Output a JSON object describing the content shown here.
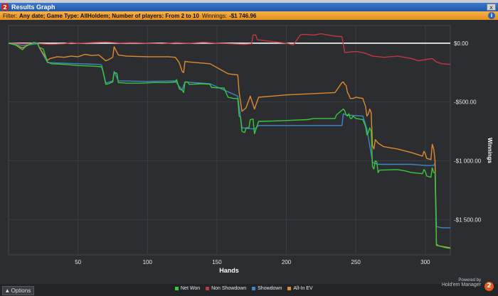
{
  "window": {
    "title": "Results Graph",
    "close_label": "x",
    "app_badge": "2"
  },
  "filter": {
    "label": "Filter:",
    "value": "Any date; Game Type: AllHoldem; Number of players: From 2 to 10",
    "winnings_label": "Winnings:",
    "winnings_value": "-$1 746.96"
  },
  "footer": {
    "options_label": "Options",
    "powered_by": "Powered by",
    "brand": "Hold'em Manager",
    "brand_badge": "2"
  },
  "colors": {
    "net_won": "#38c83a",
    "non_showdown": "#c0383c",
    "showdown": "#3d86c6",
    "allin_ev": "#df8a2c",
    "zero_line": "#ffffff",
    "background": "#2b2d31",
    "grid": "#3b3e44"
  },
  "chart_data": {
    "type": "line",
    "xlabel": "Hands",
    "ylabel": "Winnings",
    "xlim": [
      0,
      318
    ],
    "ylim": [
      -1800,
      150
    ],
    "xticks": [
      50,
      100,
      150,
      200,
      250,
      300
    ],
    "yticks": [
      0,
      -500,
      -1000,
      -1500
    ],
    "ytick_labels": [
      "$0.00",
      "-$500.00",
      "-$1 000.00",
      "-$1 500.00"
    ],
    "legend_position": "bottom",
    "series": [
      {
        "name": "Net Won",
        "color_key": "net_won",
        "points": [
          [
            0,
            0
          ],
          [
            5,
            -15
          ],
          [
            10,
            -55
          ],
          [
            13,
            -20
          ],
          [
            18,
            5
          ],
          [
            21,
            0
          ],
          [
            22,
            -35
          ],
          [
            25,
            -50
          ],
          [
            28,
            -160
          ],
          [
            31,
            -175
          ],
          [
            40,
            -180
          ],
          [
            50,
            -190
          ],
          [
            60,
            -195
          ],
          [
            67,
            -200
          ],
          [
            68,
            -240
          ],
          [
            70,
            -350
          ],
          [
            72,
            -345
          ],
          [
            75,
            -330
          ],
          [
            76,
            -250
          ],
          [
            78,
            -255
          ],
          [
            79,
            -335
          ],
          [
            85,
            -340
          ],
          [
            95,
            -340
          ],
          [
            105,
            -335
          ],
          [
            115,
            -335
          ],
          [
            120,
            -330
          ],
          [
            121,
            -310
          ],
          [
            122,
            -350
          ],
          [
            123,
            -390
          ],
          [
            125,
            -400
          ],
          [
            126,
            -420
          ],
          [
            127,
            -330
          ],
          [
            129,
            -330
          ],
          [
            130,
            -350
          ],
          [
            140,
            -345
          ],
          [
            145,
            -350
          ],
          [
            146,
            -375
          ],
          [
            150,
            -380
          ],
          [
            155,
            -380
          ],
          [
            158,
            -460
          ],
          [
            162,
            -470
          ],
          [
            165,
            -470
          ],
          [
            166,
            -620
          ],
          [
            167,
            -630
          ],
          [
            168,
            -750
          ],
          [
            170,
            -760
          ],
          [
            171,
            -720
          ],
          [
            173,
            -720
          ],
          [
            174,
            -650
          ],
          [
            176,
            -645
          ],
          [
            177,
            -770
          ],
          [
            180,
            -665
          ],
          [
            195,
            -660
          ],
          [
            215,
            -650
          ],
          [
            220,
            -640
          ],
          [
            235,
            -640
          ],
          [
            236,
            -610
          ],
          [
            241,
            -560
          ],
          [
            242,
            -575
          ],
          [
            243,
            -610
          ],
          [
            244,
            -620
          ],
          [
            245,
            -600
          ],
          [
            246,
            -640
          ],
          [
            247,
            -640
          ],
          [
            248,
            -620
          ],
          [
            250,
            -640
          ],
          [
            255,
            -650
          ],
          [
            257,
            -710
          ],
          [
            258,
            -780
          ],
          [
            259,
            -760
          ],
          [
            260,
            -720
          ],
          [
            261,
            -750
          ],
          [
            262,
            -1050
          ],
          [
            263,
            -1070
          ],
          [
            264,
            -1000
          ],
          [
            265,
            -1010
          ],
          [
            266,
            -1100
          ],
          [
            267,
            -1080
          ],
          [
            280,
            -1075
          ],
          [
            285,
            -1085
          ],
          [
            290,
            -1100
          ],
          [
            298,
            -1110
          ],
          [
            299,
            -1075
          ],
          [
            300,
            -1090
          ],
          [
            301,
            -1130
          ],
          [
            304,
            -1140
          ],
          [
            305,
            -1060
          ],
          [
            306,
            -1100
          ],
          [
            307,
            -1100
          ],
          [
            308,
            -1710
          ],
          [
            310,
            -1725
          ],
          [
            315,
            -1740
          ],
          [
            318,
            -1745
          ]
        ]
      },
      {
        "name": "Non Showdown",
        "color_key": "non_showdown",
        "points": [
          [
            0,
            0
          ],
          [
            10,
            -5
          ],
          [
            20,
            -3
          ],
          [
            30,
            -10
          ],
          [
            40,
            -5
          ],
          [
            45,
            5
          ],
          [
            50,
            0
          ],
          [
            60,
            5
          ],
          [
            70,
            10
          ],
          [
            80,
            2
          ],
          [
            90,
            5
          ],
          [
            100,
            0
          ],
          [
            110,
            -5
          ],
          [
            120,
            5
          ],
          [
            130,
            0
          ],
          [
            140,
            8
          ],
          [
            150,
            0
          ],
          [
            160,
            -5
          ],
          [
            170,
            -10
          ],
          [
            175,
            -5
          ],
          [
            176,
            70
          ],
          [
            178,
            70
          ],
          [
            179,
            30
          ],
          [
            185,
            20
          ],
          [
            200,
            0
          ],
          [
            205,
            -15
          ],
          [
            210,
            70
          ],
          [
            212,
            75
          ],
          [
            220,
            70
          ],
          [
            225,
            80
          ],
          [
            230,
            70
          ],
          [
            235,
            60
          ],
          [
            240,
            55
          ],
          [
            242,
            -80
          ],
          [
            250,
            -70
          ],
          [
            255,
            -80
          ],
          [
            258,
            -90
          ],
          [
            262,
            -110
          ],
          [
            270,
            -120
          ],
          [
            280,
            -110
          ],
          [
            290,
            -130
          ],
          [
            295,
            -150
          ],
          [
            300,
            -140
          ],
          [
            305,
            -130
          ],
          [
            308,
            -160
          ],
          [
            312,
            -175
          ],
          [
            318,
            -180
          ]
        ]
      },
      {
        "name": "Showdown",
        "color_key": "showdown",
        "points": [
          [
            0,
            0
          ],
          [
            10,
            -20
          ],
          [
            21,
            -5
          ],
          [
            22,
            -35
          ],
          [
            28,
            -165
          ],
          [
            50,
            -175
          ],
          [
            65,
            -180
          ],
          [
            67,
            -185
          ],
          [
            70,
            -340
          ],
          [
            75,
            -320
          ],
          [
            76,
            -240
          ],
          [
            79,
            -320
          ],
          [
            100,
            -325
          ],
          [
            120,
            -320
          ],
          [
            123,
            -370
          ],
          [
            125,
            -395
          ],
          [
            127,
            -330
          ],
          [
            145,
            -345
          ],
          [
            165,
            -450
          ],
          [
            168,
            -720
          ],
          [
            177,
            -730
          ],
          [
            180,
            -700
          ],
          [
            240,
            -700
          ],
          [
            241,
            -600
          ],
          [
            243,
            -610
          ],
          [
            255,
            -620
          ],
          [
            258,
            -730
          ],
          [
            262,
            -1010
          ],
          [
            263,
            -1020
          ],
          [
            266,
            -1030
          ],
          [
            290,
            -1030
          ],
          [
            300,
            -1040
          ],
          [
            306,
            -1040
          ],
          [
            307,
            -1020
          ],
          [
            308,
            -1560
          ],
          [
            312,
            -1570
          ],
          [
            318,
            -1570
          ]
        ]
      },
      {
        "name": "All-In EV",
        "color_key": "allin_ev",
        "points": [
          [
            0,
            0
          ],
          [
            5,
            -15
          ],
          [
            10,
            -40
          ],
          [
            18,
            5
          ],
          [
            21,
            0
          ],
          [
            22,
            -35
          ],
          [
            28,
            -145
          ],
          [
            30,
            -130
          ],
          [
            35,
            -115
          ],
          [
            40,
            -120
          ],
          [
            45,
            -110
          ],
          [
            50,
            -115
          ],
          [
            55,
            -95
          ],
          [
            60,
            -105
          ],
          [
            65,
            -100
          ],
          [
            67,
            -120
          ],
          [
            70,
            -150
          ],
          [
            72,
            -140
          ],
          [
            75,
            -120
          ],
          [
            76,
            -30
          ],
          [
            79,
            -100
          ],
          [
            85,
            -110
          ],
          [
            100,
            -115
          ],
          [
            115,
            -115
          ],
          [
            120,
            -120
          ],
          [
            122,
            -150
          ],
          [
            123,
            -170
          ],
          [
            125,
            -240
          ],
          [
            126,
            -250
          ],
          [
            127,
            -155
          ],
          [
            130,
            -160
          ],
          [
            145,
            -175
          ],
          [
            158,
            -260
          ],
          [
            165,
            -270
          ],
          [
            166,
            -420
          ],
          [
            168,
            -580
          ],
          [
            171,
            -550
          ],
          [
            174,
            -450
          ],
          [
            177,
            -560
          ],
          [
            180,
            -460
          ],
          [
            200,
            -440
          ],
          [
            235,
            -420
          ],
          [
            240,
            -335
          ],
          [
            241,
            -330
          ],
          [
            242,
            -350
          ],
          [
            243,
            -360
          ],
          [
            244,
            -420
          ],
          [
            245,
            -440
          ],
          [
            246,
            -470
          ],
          [
            248,
            -470
          ],
          [
            250,
            -460
          ],
          [
            255,
            -470
          ],
          [
            257,
            -540
          ],
          [
            258,
            -620
          ],
          [
            259,
            -600
          ],
          [
            260,
            -560
          ],
          [
            261,
            -590
          ],
          [
            262,
            -870
          ],
          [
            263,
            -900
          ],
          [
            264,
            -820
          ],
          [
            266,
            -850
          ],
          [
            270,
            -880
          ],
          [
            280,
            -900
          ],
          [
            290,
            -930
          ],
          [
            298,
            -960
          ],
          [
            299,
            -920
          ],
          [
            300,
            -940
          ],
          [
            301,
            -980
          ],
          [
            304,
            -990
          ],
          [
            305,
            -860
          ],
          [
            306,
            -900
          ],
          [
            307,
            -1000
          ],
          [
            308,
            -1720
          ],
          [
            318,
            -1740
          ]
        ]
      }
    ]
  }
}
